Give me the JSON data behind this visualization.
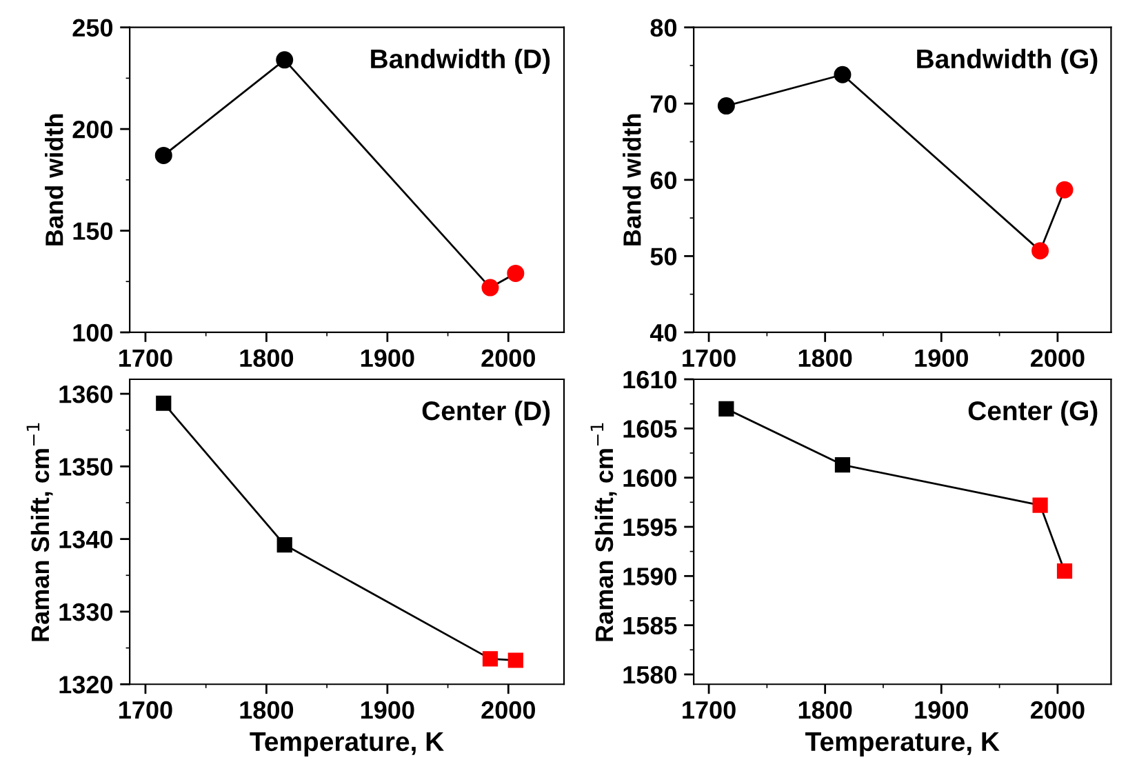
{
  "chart_data": [
    {
      "type": "line",
      "title": "Bandwidth (D)",
      "ylabel": "Band width",
      "x": [
        1715,
        1815,
        1985,
        2006
      ],
      "series": [
        {
          "color": "#000000",
          "colors": [
            "#000000",
            "#000000",
            "#ff0000",
            "#ff0000"
          ],
          "values": [
            187,
            234,
            122,
            129
          ]
        }
      ],
      "marker": "circle",
      "line_style": "solid",
      "xlim": [
        1687,
        2046
      ],
      "xticks": [
        1700,
        1800,
        1900,
        2000
      ],
      "ylim": [
        100,
        250
      ],
      "yticks": [
        100,
        150,
        200,
        250
      ],
      "grid": false,
      "legend": false
    },
    {
      "type": "line",
      "title": "Bandwidth (G)",
      "ylabel": "Band width",
      "x": [
        1715,
        1815,
        1985,
        2006
      ],
      "series": [
        {
          "color": "#000000",
          "colors": [
            "#000000",
            "#000000",
            "#ff0000",
            "#ff0000"
          ],
          "values": [
            69.7,
            73.8,
            50.7,
            58.7
          ]
        }
      ],
      "marker": "circle",
      "line_style": "solid",
      "xlim": [
        1687,
        2046
      ],
      "xticks": [
        1700,
        1800,
        1900,
        2000
      ],
      "ylim": [
        40,
        80
      ],
      "yticks": [
        40,
        50,
        60,
        70,
        80
      ],
      "grid": false,
      "legend": false
    },
    {
      "type": "line",
      "title": "Center (D)",
      "ylabel": "Raman Shift, cm$^{−1}$",
      "xlabel": "Temperature, K",
      "x": [
        1715,
        1815,
        1985,
        2006
      ],
      "series": [
        {
          "color": "#000000",
          "colors": [
            "#000000",
            "#000000",
            "#ff0000",
            "#ff0000"
          ],
          "values": [
            1358.7,
            1339.2,
            1323.5,
            1323.3
          ]
        }
      ],
      "marker": "square",
      "line_style": "solid",
      "xlim": [
        1687,
        2046
      ],
      "xticks": [
        1700,
        1800,
        1900,
        2000
      ],
      "ylim": [
        1320,
        1362
      ],
      "yticks": [
        1320,
        1330,
        1340,
        1350,
        1360
      ],
      "grid": false,
      "legend": false
    },
    {
      "type": "line",
      "title": "Center (G)",
      "ylabel": "Raman Shift, cm$^{−1}$",
      "xlabel": "Temperature, K",
      "x": [
        1715,
        1815,
        1985,
        2006
      ],
      "series": [
        {
          "color": "#000000",
          "colors": [
            "#000000",
            "#000000",
            "#ff0000",
            "#ff0000"
          ],
          "values": [
            1607.0,
            1601.3,
            1597.2,
            1590.5
          ]
        }
      ],
      "marker": "square",
      "line_style": "solid",
      "xlim": [
        1687,
        2046
      ],
      "xticks": [
        1700,
        1800,
        1900,
        2000
      ],
      "ylim": [
        1579,
        1610
      ],
      "yticks": [
        1580,
        1585,
        1590,
        1595,
        1600,
        1605,
        1610
      ],
      "grid": false,
      "legend": false
    }
  ]
}
